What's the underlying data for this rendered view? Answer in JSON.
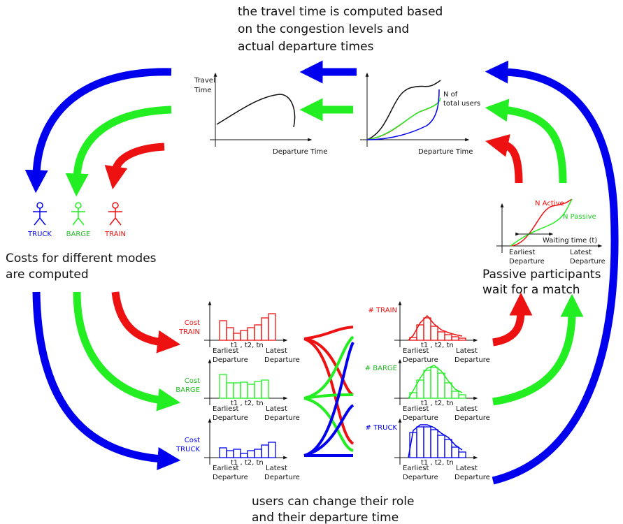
{
  "top_caption": {
    "lines": [
      "the travel time is computed based",
      "on the congestion levels and",
      "actual departure times"
    ]
  },
  "travel_time_graph": {
    "y_label": [
      "Travel",
      "Time"
    ],
    "x_label": "Departure Time"
  },
  "users_graph": {
    "curve_label": [
      "N of",
      "total users"
    ],
    "x_label": "Departure Time"
  },
  "modes": [
    {
      "label": "TRUCK"
    },
    {
      "label": "BARGE"
    },
    {
      "label": "TRAIN"
    }
  ],
  "costs_caption": {
    "lines": [
      "Costs for different modes",
      "are computed"
    ]
  },
  "matching_graph": {
    "active_label": "N Active",
    "passive_label": "N Passive",
    "waiting_label": "Waiting time (t)",
    "x_start": [
      "Earliest",
      "Departure"
    ],
    "x_end": [
      "Latest",
      "Departure"
    ]
  },
  "passive_caption": {
    "lines": [
      "Passive participants",
      "wait  for a match"
    ]
  },
  "cost_histograms": [
    {
      "label": [
        "Cost",
        "TRAIN"
      ],
      "tick_label": "t1 , t2, tn",
      "x_start": [
        "Earliest",
        "Departure"
      ],
      "x_end": [
        "Latest",
        "Departure"
      ]
    },
    {
      "label": [
        "Cost",
        "BARGE"
      ],
      "tick_label": "t1 , t2, tn",
      "x_start": [
        "Earliest",
        "Departure"
      ],
      "x_end": [
        "Latest",
        "Departure"
      ]
    },
    {
      "label": [
        "Cost",
        "TRUCK"
      ],
      "tick_label": "t1 , t2, tn",
      "x_start": [
        "Earliest",
        "Departure"
      ],
      "x_end": [
        "Latest",
        "Departure"
      ]
    }
  ],
  "count_histograms": [
    {
      "label": "# TRAIN",
      "tick_label": "t1 , t2, tn",
      "x_start": [
        "Earliest",
        "Departure"
      ],
      "x_end": [
        "Latest",
        "Departure"
      ]
    },
    {
      "label": "# BARGE",
      "tick_label": "t1 , t2, tn",
      "x_start": [
        "Earliest",
        "Departure"
      ],
      "x_end": [
        "Latest",
        "Departure"
      ]
    },
    {
      "label": "# TRUCK",
      "tick_label": "t1 , t2, tn",
      "x_start": [
        "Earliest",
        "Departure"
      ],
      "x_end": [
        "Latest",
        "Departure"
      ]
    }
  ],
  "bottom_caption": {
    "lines": [
      "users can change their role",
      "and their departure time"
    ]
  }
}
